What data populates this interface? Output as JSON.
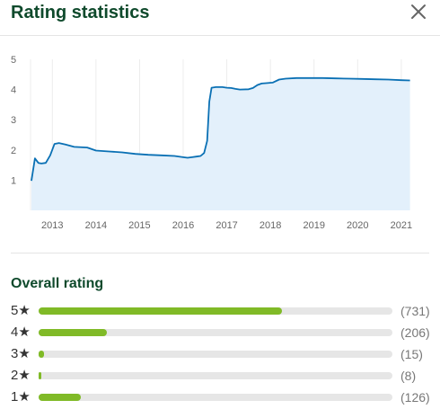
{
  "dialog": {
    "title": "Rating statistics",
    "close_icon": "close-icon"
  },
  "chart_data": {
    "type": "area",
    "title": "",
    "xlabel": "",
    "ylabel": "",
    "ylim": [
      0,
      5
    ],
    "xlim": [
      2012.5,
      2021.25
    ],
    "yticks": [
      "1",
      "2",
      "3",
      "4",
      "5"
    ],
    "xticks": [
      "2013",
      "2014",
      "2015",
      "2016",
      "2017",
      "2018",
      "2019",
      "2020",
      "2021"
    ],
    "grid": "vertical",
    "legend": "none",
    "line_color": "#0a70b4",
    "fill_color": "#e3f0fb",
    "series": [
      {
        "x": [
          2012.52,
          2012.6,
          2012.68,
          2012.75,
          2012.85,
          2012.95,
          2013.05,
          2013.15,
          2013.3,
          2013.5,
          2013.8,
          2014.0,
          2014.3,
          2014.6,
          2014.9,
          2015.2,
          2015.5,
          2015.8,
          2016.0,
          2016.1,
          2016.2,
          2016.3,
          2016.4,
          2016.48,
          2016.55,
          2016.6,
          2016.65,
          2016.75,
          2016.9,
          2017.0,
          2017.1,
          2017.2,
          2017.3,
          2017.5,
          2017.6,
          2017.7,
          2017.8,
          2017.9,
          2018.05,
          2018.2,
          2018.35,
          2018.6,
          2018.9,
          2019.2,
          2019.5,
          2019.8,
          2020.1,
          2020.4,
          2020.7,
          2021.0,
          2021.2
        ],
        "y": [
          0.98,
          1.72,
          1.57,
          1.55,
          1.57,
          1.82,
          2.2,
          2.23,
          2.18,
          2.1,
          2.08,
          1.98,
          1.95,
          1.92,
          1.87,
          1.84,
          1.82,
          1.8,
          1.76,
          1.74,
          1.76,
          1.78,
          1.8,
          1.9,
          2.3,
          3.6,
          4.06,
          4.08,
          4.08,
          4.06,
          4.05,
          4.02,
          4.0,
          4.01,
          4.05,
          4.15,
          4.2,
          4.21,
          4.23,
          4.33,
          4.36,
          4.38,
          4.38,
          4.38,
          4.37,
          4.36,
          4.35,
          4.34,
          4.33,
          4.31,
          4.3
        ]
      }
    ]
  },
  "overall": {
    "title": "Overall rating",
    "max_count": 1062,
    "rows": [
      {
        "label": "5★",
        "count": 731,
        "count_label": "(731)"
      },
      {
        "label": "4★",
        "count": 206,
        "count_label": "(206)"
      },
      {
        "label": "3★",
        "count": 15,
        "count_label": "(15)"
      },
      {
        "label": "2★",
        "count": 8,
        "count_label": "(8)"
      },
      {
        "label": "1★",
        "count": 126,
        "count_label": "(126)"
      }
    ]
  }
}
